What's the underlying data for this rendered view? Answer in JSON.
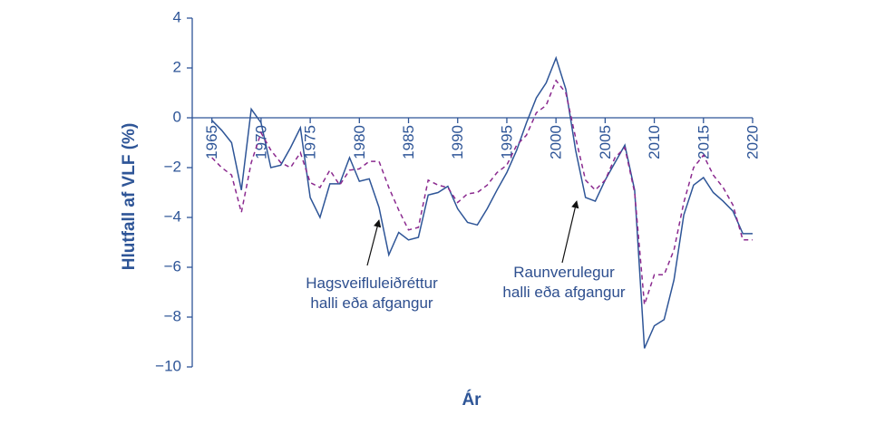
{
  "chart_data": {
    "type": "line",
    "xlabel": "Ár",
    "ylabel": "Hlutfall af VLF (%)",
    "x": [
      1965,
      1966,
      1967,
      1968,
      1969,
      1970,
      1971,
      1972,
      1973,
      1974,
      1975,
      1976,
      1977,
      1978,
      1979,
      1980,
      1981,
      1982,
      1983,
      1984,
      1985,
      1986,
      1987,
      1988,
      1989,
      1990,
      1991,
      1992,
      1993,
      1994,
      1995,
      1996,
      1997,
      1998,
      1999,
      2000,
      2001,
      2002,
      2003,
      2004,
      2005,
      2006,
      2007,
      2008,
      2009,
      2010,
      2011,
      2012,
      2013,
      2014,
      2015,
      2016,
      2017,
      2018,
      2019,
      2020
    ],
    "series": [
      {
        "name": "Raunverulegur halli eða afgangur",
        "color": "#2e5597",
        "dash": false,
        "values": [
          -0.1,
          -0.5,
          -1.0,
          -2.9,
          0.35,
          -0.2,
          -2.0,
          -1.9,
          -1.2,
          -0.4,
          -3.2,
          -4.0,
          -2.65,
          -2.65,
          -1.6,
          -2.55,
          -2.45,
          -3.6,
          -5.5,
          -4.6,
          -4.9,
          -4.8,
          -3.1,
          -3.0,
          -2.75,
          -3.65,
          -4.2,
          -4.3,
          -3.65,
          -2.9,
          -2.2,
          -1.3,
          -0.2,
          0.8,
          1.4,
          2.4,
          1.15,
          -1.3,
          -3.2,
          -3.35,
          -2.5,
          -1.8,
          -1.1,
          -2.9,
          -9.25,
          -8.35,
          -8.1,
          -6.5,
          -3.9,
          -2.7,
          -2.4,
          -3.0,
          -3.35,
          -3.75,
          -4.65,
          -4.65
        ]
      },
      {
        "name": "Hagsveifluleiðréttur halli eða afgangur",
        "color": "#8b2a8f",
        "dash": true,
        "values": [
          -1.6,
          -2.0,
          -2.3,
          -3.8,
          -1.8,
          -0.6,
          -1.3,
          -1.8,
          -2.0,
          -1.4,
          -2.6,
          -2.8,
          -2.1,
          -2.7,
          -2.1,
          -2.05,
          -1.75,
          -1.75,
          -2.8,
          -3.7,
          -4.5,
          -4.4,
          -2.5,
          -2.7,
          -2.8,
          -3.4,
          -3.05,
          -3.0,
          -2.7,
          -2.2,
          -1.9,
          -1.1,
          -0.7,
          0.2,
          0.5,
          1.5,
          1.0,
          -0.8,
          -2.5,
          -2.9,
          -2.5,
          -1.6,
          -1.2,
          -3.0,
          -7.5,
          -6.3,
          -6.3,
          -5.3,
          -3.4,
          -2.0,
          -1.5,
          -2.3,
          -2.8,
          -3.5,
          -4.9,
          -4.9
        ]
      }
    ],
    "annotations": [
      {
        "lines": [
          "Hagsveifluleiðréttur",
          "halli eða afgangur"
        ]
      },
      {
        "lines": [
          "Raunverulegur",
          "halli eða afgangur"
        ]
      }
    ],
    "xlim": [
      1963,
      2020
    ],
    "xticks": [
      1965,
      1970,
      1975,
      1980,
      1985,
      1990,
      1995,
      2000,
      2005,
      2010,
      2015,
      2020
    ],
    "ylim": [
      -10,
      4
    ],
    "yticks": [
      {
        "value": -10,
        "label": "−10"
      },
      {
        "value": -8,
        "label": "−8"
      },
      {
        "value": -6,
        "label": "−6"
      },
      {
        "value": -4,
        "label": "−4"
      },
      {
        "value": -2,
        "label": "−2"
      },
      0,
      2,
      4
    ]
  }
}
